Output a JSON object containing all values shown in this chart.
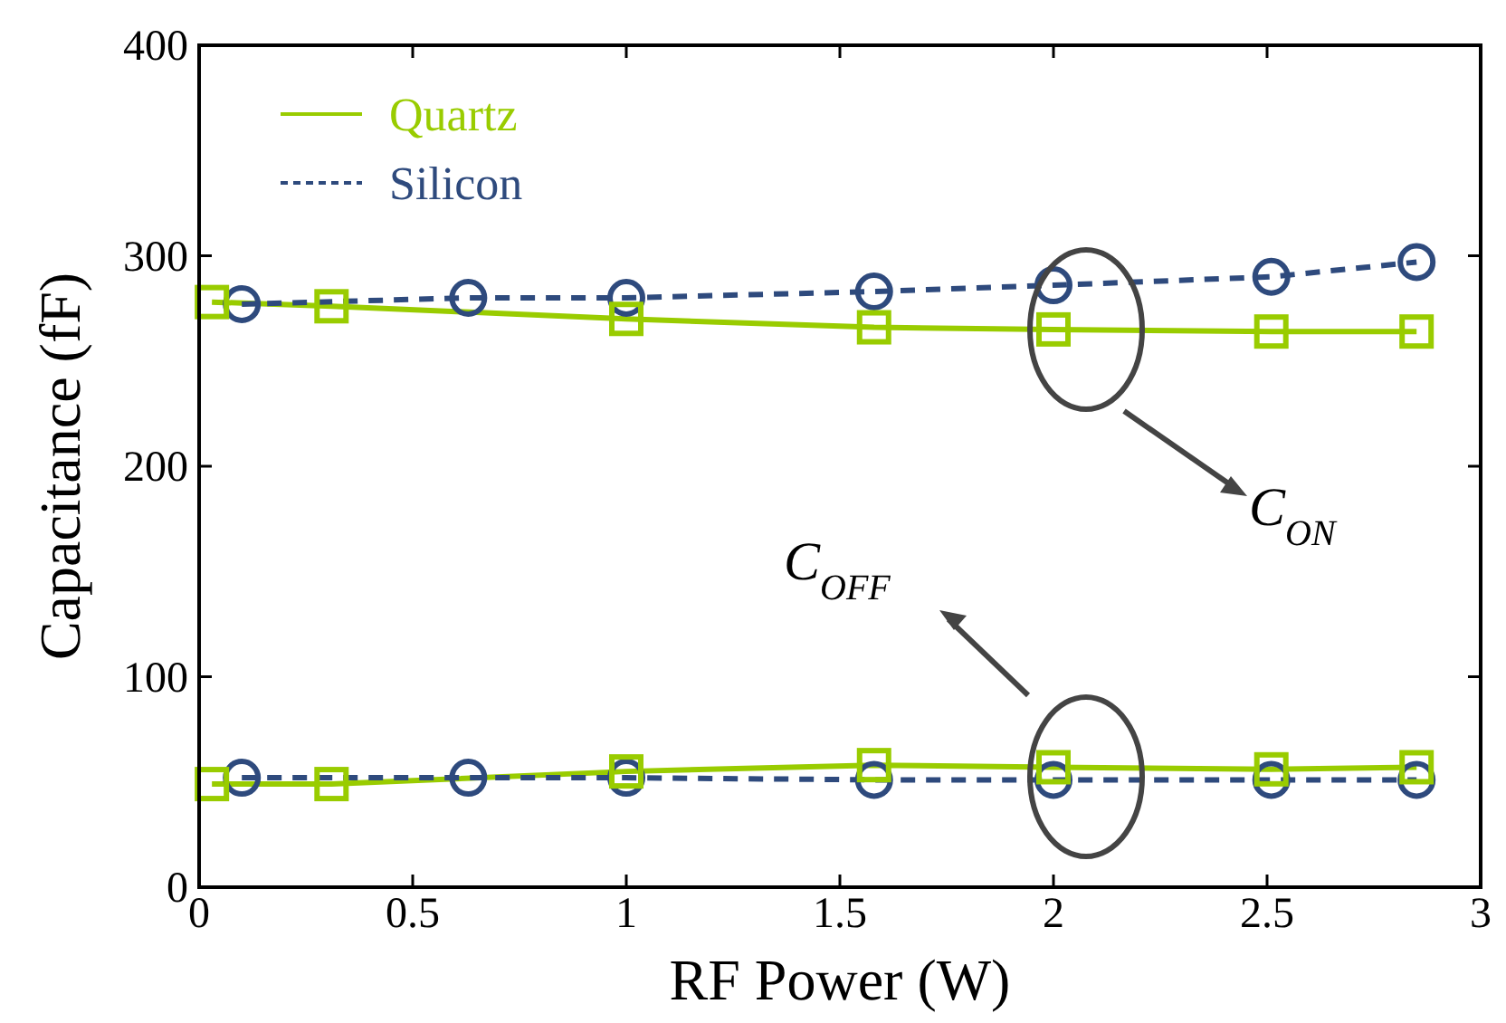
{
  "chart_data": {
    "type": "line",
    "xlabel": "RF Power (W)",
    "ylabel": "Capacitance (fF)",
    "xlim": [
      0,
      3
    ],
    "xticks": [
      0,
      0.5,
      1,
      1.5,
      2,
      2.5,
      3
    ],
    "ylim": [
      0,
      400
    ],
    "yticks": [
      0,
      100,
      200,
      300,
      400
    ],
    "grid": false,
    "legend": "top left",
    "series": [
      {
        "name": "Quartz",
        "color": "#99cc00",
        "marker": "square",
        "line_style": "solid",
        "x": [
          0.03,
          0.31,
          1.0,
          1.58,
          2.0,
          2.51,
          2.85
        ],
        "values": [
          278,
          276,
          270,
          266,
          265,
          264,
          264
        ]
      },
      {
        "name": "Silicon",
        "color": "#2e4a7d",
        "marker": "circle",
        "line_style": "dashed",
        "x": [
          0.1,
          0.63,
          1.0,
          1.58,
          2.0,
          2.51,
          2.85
        ],
        "values": [
          277,
          280,
          280,
          283,
          286,
          290,
          297
        ]
      },
      {
        "color": "#99cc00",
        "marker": "square",
        "line_style": "solid",
        "x": [
          0.03,
          0.31,
          1.0,
          1.58,
          2.0,
          2.51,
          2.85
        ],
        "values": [
          49,
          49,
          55,
          58,
          57,
          56,
          57
        ]
      },
      {
        "color": "#2e4a7d",
        "marker": "circle",
        "line_style": "dashed",
        "x": [
          0.1,
          0.63,
          1.0,
          1.58,
          2.0,
          2.51,
          2.85
        ],
        "values": [
          52,
          52,
          52,
          51,
          51,
          51,
          51
        ]
      }
    ],
    "annotations": [
      "C$_{ON}$",
      "C$_{OFF}$"
    ]
  }
}
